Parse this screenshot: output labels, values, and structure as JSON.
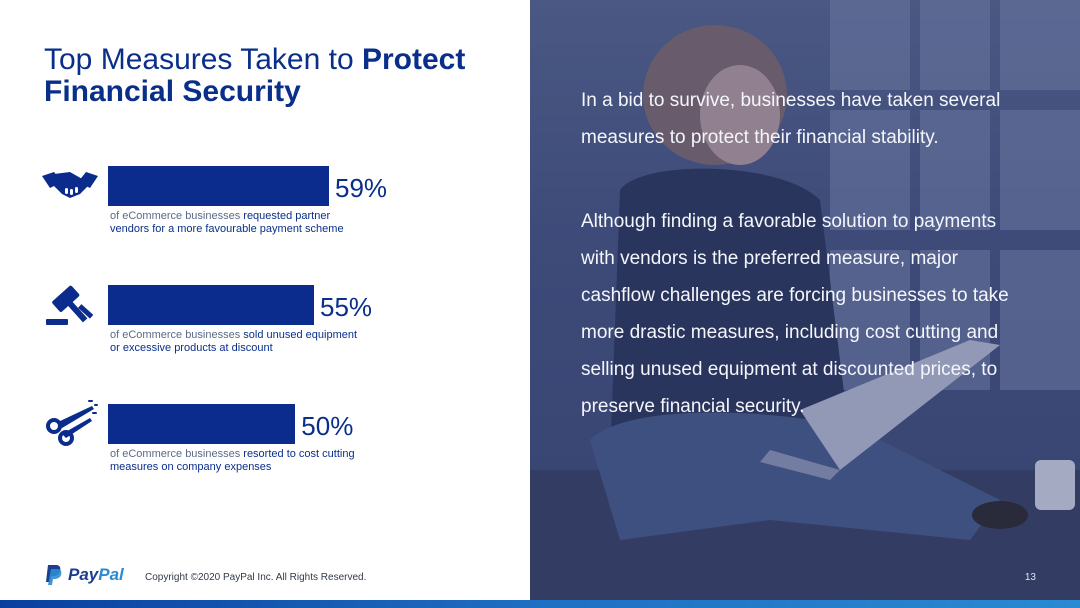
{
  "title": {
    "normal": "Top Measures Taken to ",
    "bold_1": "Protect",
    "bold_2": "Financial Security"
  },
  "chart_data": {
    "type": "bar",
    "categories": [
      "requested partner vendors for a more favourable payment scheme",
      "sold unused equipment or excessive products at discount",
      "resorted to cost cutting measures on company expenses"
    ],
    "values": [
      59,
      55,
      50
    ],
    "value_labels": [
      "59%",
      "55%",
      "50%"
    ],
    "xlim": [
      0,
      100
    ],
    "title": "",
    "xlabel": "",
    "ylabel": "",
    "grid": false,
    "legend": "none"
  },
  "rows": [
    {
      "icon": "handshake-icon",
      "prefix": "of eCommerce businesses ",
      "highlight_1": "requested partner",
      "highlight_2": "vendors for a more favourable payment scheme"
    },
    {
      "icon": "gavel-icon",
      "prefix": "of eCommerce businesses ",
      "highlight_1": "sold unused equipment",
      "highlight_2": "or excessive products at discount"
    },
    {
      "icon": "scissors-icon",
      "prefix": "of eCommerce businesses ",
      "highlight_1": "resorted to cost cutting",
      "highlight_2": "measures on company expenses"
    }
  ],
  "right_panel": {
    "paragraph_1": "In a bid to survive, businesses have taken several measures to protect their financial stability.",
    "paragraph_2": "Although finding a favorable solution to payments with vendors is the preferred measure, major cashflow challenges are forcing businesses to take more drastic measures, including cost cutting and selling unused equipment at discounted prices, to preserve financial security.",
    "page_number": "13"
  },
  "footer": {
    "logo_pay": "Pay",
    "logo_pal": "Pal",
    "copyright": "Copyright ©2020 PayPal Inc. All Rights Reserved."
  },
  "colors": {
    "primary": "#0b2c8c",
    "accent": "#2a8ad3",
    "text_muted": "#5a6b86"
  }
}
